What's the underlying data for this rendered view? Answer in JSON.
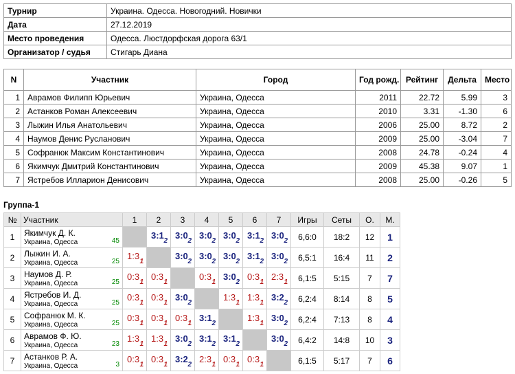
{
  "info": {
    "rows": [
      [
        "Турнир",
        "Украина. Одесса. Новогодний. Новички"
      ],
      [
        "Дата",
        "27.12.2019"
      ],
      [
        "Место проведения",
        "Одесса. Люстдорфская дорога 63/1"
      ],
      [
        "Организатор / судья",
        "Стигарь Диана"
      ]
    ]
  },
  "participants": {
    "header": [
      "N",
      "Участник",
      "Город",
      "Год рожд.",
      "Рейтинг",
      "Дельта",
      "Место"
    ],
    "rows": [
      [
        "1",
        "Аврамов Филипп Юрьевич",
        "Украина, Одесса",
        "2011",
        "22.72",
        "5.99",
        "3"
      ],
      [
        "2",
        "Астанков Роман Алексеевич",
        "Украина, Одесса",
        "2010",
        "3.31",
        "-1.30",
        "6"
      ],
      [
        "3",
        "Лыжин Илья Анатольевич",
        "Украина, Одесса",
        "2006",
        "25.00",
        "8.72",
        "2"
      ],
      [
        "4",
        "Наумов Денис Русланович",
        "Украина, Одесса",
        "2009",
        "25.00",
        "-3.04",
        "7"
      ],
      [
        "5",
        "Софранюк Максим Константинович",
        "Украина, Одесса",
        "2008",
        "24.78",
        "-0.24",
        "4"
      ],
      [
        "6",
        "Якимчук Дмитрий Константинович",
        "Украина, Одесса",
        "2009",
        "45.38",
        "9.07",
        "1"
      ],
      [
        "7",
        "Ястребов Илларион Денисович",
        "Украина, Одесса",
        "2008",
        "25.00",
        "-0.26",
        "5"
      ]
    ]
  },
  "group": {
    "title": "Группа-1",
    "header": [
      "№",
      "Участник",
      "1",
      "2",
      "3",
      "4",
      "5",
      "6",
      "7",
      "Игры",
      "Сеты",
      "О.",
      "М."
    ],
    "rows": [
      {
        "n": "1",
        "name": "Якимчук Д. К.",
        "city": "Украина, Одесса",
        "rating": "45",
        "results": [
          null,
          {
            "score": "3:1",
            "points": "2"
          },
          {
            "score": "3:0",
            "points": "2"
          },
          {
            "score": "3:0",
            "points": "2"
          },
          {
            "score": "3:0",
            "points": "2"
          },
          {
            "score": "3:1",
            "points": "2"
          },
          {
            "score": "3:0",
            "points": "2"
          }
        ],
        "games": "6,6:0",
        "sets": "18:2",
        "points": "12",
        "place": "1"
      },
      {
        "n": "2",
        "name": "Лыжин И. А.",
        "city": "Украина, Одесса",
        "rating": "25",
        "results": [
          {
            "score": "1:3",
            "points": "1"
          },
          null,
          {
            "score": "3:0",
            "points": "2"
          },
          {
            "score": "3:0",
            "points": "2"
          },
          {
            "score": "3:0",
            "points": "2"
          },
          {
            "score": "3:1",
            "points": "2"
          },
          {
            "score": "3:0",
            "points": "2"
          }
        ],
        "games": "6,5:1",
        "sets": "16:4",
        "points": "11",
        "place": "2"
      },
      {
        "n": "3",
        "name": "Наумов Д. Р.",
        "city": "Украина, Одесса",
        "rating": "25",
        "results": [
          {
            "score": "0:3",
            "points": "1"
          },
          {
            "score": "0:3",
            "points": "1"
          },
          null,
          {
            "score": "0:3",
            "points": "1"
          },
          {
            "score": "3:0",
            "points": "2"
          },
          {
            "score": "0:3",
            "points": "1"
          },
          {
            "score": "2:3",
            "points": "1"
          }
        ],
        "games": "6,1:5",
        "sets": "5:15",
        "points": "7",
        "place": "7"
      },
      {
        "n": "4",
        "name": "Ястребов И. Д.",
        "city": "Украина, Одесса",
        "rating": "25",
        "results": [
          {
            "score": "0:3",
            "points": "1"
          },
          {
            "score": "0:3",
            "points": "1"
          },
          {
            "score": "3:0",
            "points": "2"
          },
          null,
          {
            "score": "1:3",
            "points": "1"
          },
          {
            "score": "1:3",
            "points": "1"
          },
          {
            "score": "3:2",
            "points": "2"
          }
        ],
        "games": "6,2:4",
        "sets": "8:14",
        "points": "8",
        "place": "5"
      },
      {
        "n": "5",
        "name": "Софранюк М. К.",
        "city": "Украина, Одесса",
        "rating": "25",
        "results": [
          {
            "score": "0:3",
            "points": "1"
          },
          {
            "score": "0:3",
            "points": "1"
          },
          {
            "score": "0:3",
            "points": "1"
          },
          {
            "score": "3:1",
            "points": "2"
          },
          null,
          {
            "score": "1:3",
            "points": "1"
          },
          {
            "score": "3:0",
            "points": "2"
          }
        ],
        "games": "6,2:4",
        "sets": "7:13",
        "points": "8",
        "place": "4"
      },
      {
        "n": "6",
        "name": "Аврамов Ф. Ю.",
        "city": "Украина, Одесса",
        "rating": "23",
        "results": [
          {
            "score": "1:3",
            "points": "1"
          },
          {
            "score": "1:3",
            "points": "1"
          },
          {
            "score": "3:0",
            "points": "2"
          },
          {
            "score": "3:1",
            "points": "2"
          },
          {
            "score": "3:1",
            "points": "2"
          },
          null,
          {
            "score": "3:0",
            "points": "2"
          }
        ],
        "games": "6,4:2",
        "sets": "14:8",
        "points": "10",
        "place": "3"
      },
      {
        "n": "7",
        "name": "Астанков Р. А.",
        "city": "Украина, Одесса",
        "rating": "3",
        "results": [
          {
            "score": "0:3",
            "points": "1"
          },
          {
            "score": "0:3",
            "points": "1"
          },
          {
            "score": "3:2",
            "points": "2"
          },
          {
            "score": "2:3",
            "points": "1"
          },
          {
            "score": "0:3",
            "points": "1"
          },
          {
            "score": "0:3",
            "points": "1"
          },
          null
        ],
        "games": "6,1:5",
        "sets": "5:17",
        "points": "7",
        "place": "6"
      }
    ]
  }
}
